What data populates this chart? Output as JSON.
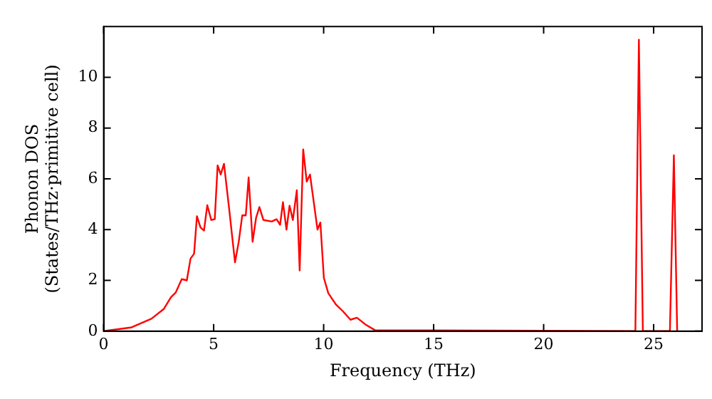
{
  "chart_data": {
    "type": "line",
    "xlabel": "Frequency (THz)",
    "ylabel": "Phonon DOS\n(States/THz·primitive cell)",
    "series": [
      {
        "color": "#ff0000",
        "x": [
          0,
          1.27,
          2.17,
          2.73,
          3.06,
          3.28,
          3.55,
          3.78,
          3.95,
          4.11,
          4.24,
          4.4,
          4.56,
          4.71,
          4.89,
          5.05,
          5.18,
          5.32,
          5.47,
          5.7,
          5.97,
          6.14,
          6.3,
          6.46,
          6.59,
          6.77,
          6.93,
          7.08,
          7.26,
          7.64,
          7.86,
          8.02,
          8.15,
          8.31,
          8.45,
          8.6,
          8.78,
          8.91,
          9.07,
          9.23,
          9.38,
          9.72,
          9.85,
          10.01,
          10.21,
          10.55,
          10.88,
          11.22,
          11.51,
          11.89,
          12.33,
          24.17,
          24.33,
          24.51,
          25.74,
          25.92,
          26.07
        ],
        "values": [
          0,
          0.15,
          0.49,
          0.87,
          1.34,
          1.53,
          2.05,
          2.0,
          2.86,
          3.05,
          4.53,
          4.09,
          3.96,
          4.96,
          4.38,
          4.41,
          6.53,
          6.17,
          6.59,
          4.85,
          2.71,
          3.52,
          4.56,
          4.56,
          6.06,
          3.52,
          4.47,
          4.89,
          4.38,
          4.32,
          4.41,
          4.19,
          5.08,
          4.0,
          4.94,
          4.38,
          5.55,
          2.39,
          7.16,
          5.89,
          6.17,
          4.0,
          4.28,
          2.1,
          1.5,
          1.06,
          0.78,
          0.45,
          0.53,
          0.27,
          0.04,
          0,
          11.48,
          0,
          0,
          6.93,
          0
        ]
      }
    ],
    "xlim": [
      0,
      27.2
    ],
    "ylim": [
      0,
      12
    ],
    "xticks": [
      0,
      5,
      10,
      15,
      20,
      25
    ],
    "yticks": [
      0,
      2,
      4,
      6,
      8,
      10
    ],
    "grid": false,
    "legend": false,
    "marker": "none",
    "line_style": "solid"
  }
}
